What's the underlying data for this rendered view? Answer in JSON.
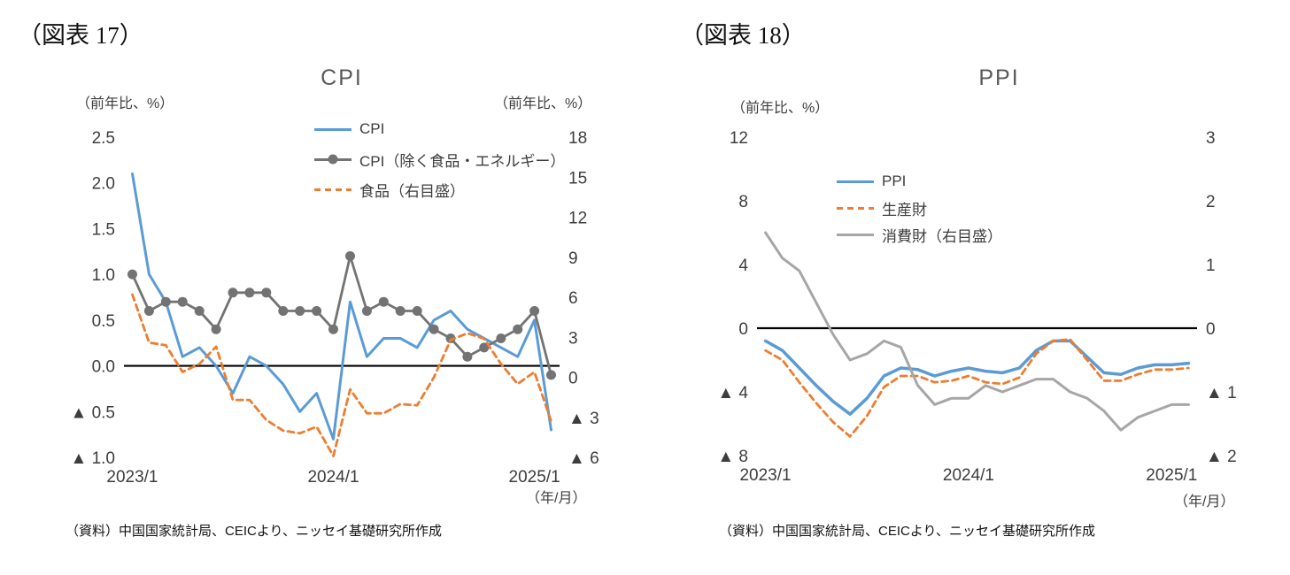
{
  "figures": [
    {
      "label": "（図表 17）",
      "source": "（資料）中国国家統計局、CEICより、ニッセイ基礎研究所作成"
    },
    {
      "label": "（図表 18）",
      "source": "（資料）中国国家統計局、CEICより、ニッセイ基礎研究所作成"
    }
  ],
  "chart_data": [
    {
      "type": "line",
      "title": "CPI",
      "x_unit": "（年/月）",
      "x": [
        "2023/1",
        "2023/2",
        "2023/3",
        "2023/4",
        "2023/5",
        "2023/6",
        "2023/7",
        "2023/8",
        "2023/9",
        "2023/10",
        "2023/11",
        "2023/12",
        "2024/1",
        "2024/2",
        "2024/3",
        "2024/4",
        "2024/5",
        "2024/6",
        "2024/7",
        "2024/8",
        "2024/9",
        "2024/10",
        "2024/11",
        "2024/12",
        "2025/1",
        "2025/2"
      ],
      "x_ticks": [
        {
          "index": 0,
          "label": "2023/1"
        },
        {
          "index": 12,
          "label": "2024/1"
        },
        {
          "index": 24,
          "label": "2025/1"
        }
      ],
      "left_axis": {
        "label": "（前年比、%）",
        "min": -1.0,
        "max": 2.5,
        "ticks": [
          "2.5",
          "2.0",
          "1.5",
          "1.0",
          "0.5",
          "0.0",
          "▲ 0.5",
          "▲ 1.0"
        ]
      },
      "right_axis": {
        "label": "（前年比、%）",
        "min": -6,
        "max": 18,
        "ticks": [
          "18",
          "15",
          "12",
          "9",
          "6",
          "3",
          "0",
          "▲ 3",
          "▲ 6"
        ]
      },
      "legend_position": "top-center-overlay",
      "grid": false,
      "series": [
        {
          "id": "cpi",
          "name": "CPI",
          "axis": "left",
          "color": "#5B9BD5",
          "style": "solid",
          "width": 3,
          "values": [
            2.1,
            1.0,
            0.7,
            0.1,
            0.2,
            0.0,
            -0.3,
            0.1,
            0.0,
            -0.2,
            -0.5,
            -0.3,
            -0.8,
            0.7,
            0.1,
            0.3,
            0.3,
            0.2,
            0.5,
            0.6,
            0.4,
            0.3,
            0.2,
            0.1,
            0.5,
            -0.7
          ]
        },
        {
          "id": "core-cpi",
          "name": "CPI（除く食品・エネルギー）",
          "axis": "left",
          "color": "#737373",
          "style": "solid",
          "width": 2.8,
          "marker": 5.5,
          "values": [
            1.0,
            0.6,
            0.7,
            0.7,
            0.6,
            0.4,
            0.8,
            0.8,
            0.8,
            0.6,
            0.6,
            0.6,
            0.4,
            1.2,
            0.6,
            0.7,
            0.6,
            0.6,
            0.4,
            0.3,
            0.1,
            0.2,
            0.3,
            0.4,
            0.6,
            -0.1
          ]
        },
        {
          "id": "food",
          "name": "食品（右目盛）",
          "axis": "right",
          "color": "#ED7D31",
          "style": "dashed",
          "width": 2.8,
          "values": [
            6.2,
            2.6,
            2.4,
            0.4,
            1.0,
            2.3,
            -1.7,
            -1.7,
            -3.2,
            -4.0,
            -4.2,
            -3.7,
            -5.9,
            -0.9,
            -2.7,
            -2.7,
            -2.0,
            -2.1,
            0.0,
            2.8,
            3.3,
            2.9,
            1.0,
            -0.5,
            0.4,
            -3.3
          ]
        }
      ]
    },
    {
      "type": "line",
      "title": "PPI",
      "x_unit": "（年/月）",
      "x": [
        "2023/1",
        "2023/2",
        "2023/3",
        "2023/4",
        "2023/5",
        "2023/6",
        "2023/7",
        "2023/8",
        "2023/9",
        "2023/10",
        "2023/11",
        "2023/12",
        "2024/1",
        "2024/2",
        "2024/3",
        "2024/4",
        "2024/5",
        "2024/6",
        "2024/7",
        "2024/8",
        "2024/9",
        "2024/10",
        "2024/11",
        "2024/12",
        "2025/1",
        "2025/2"
      ],
      "x_ticks": [
        {
          "index": 0,
          "label": "2023/1"
        },
        {
          "index": 12,
          "label": "2024/1"
        },
        {
          "index": 24,
          "label": "2025/1"
        }
      ],
      "left_axis": {
        "label": "（前年比、%）",
        "min": -8,
        "max": 12,
        "ticks": [
          "12",
          "8",
          "4",
          "0",
          "▲ 4",
          "▲ 8"
        ]
      },
      "right_axis": {
        "label": "",
        "min": -2,
        "max": 3,
        "ticks": [
          "3",
          "2",
          "1",
          "0",
          "▲ 1",
          "▲ 2"
        ]
      },
      "legend_position": "top-center-overlay",
      "grid": false,
      "series": [
        {
          "id": "ppi",
          "name": "PPI",
          "axis": "left",
          "color": "#5B9BD5",
          "style": "solid",
          "width": 3.5,
          "values": [
            -0.8,
            -1.4,
            -2.5,
            -3.6,
            -4.6,
            -5.4,
            -4.4,
            -3.0,
            -2.5,
            -2.6,
            -3.0,
            -2.7,
            -2.5,
            -2.7,
            -2.8,
            -2.5,
            -1.4,
            -0.8,
            -0.8,
            -1.8,
            -2.8,
            -2.9,
            -2.5,
            -2.3,
            -2.3,
            -2.2
          ]
        },
        {
          "id": "producer-goods",
          "name": "生産財",
          "axis": "left",
          "color": "#ED7D31",
          "style": "dashed",
          "width": 2.8,
          "values": [
            -1.4,
            -2.0,
            -3.4,
            -4.7,
            -5.9,
            -6.8,
            -5.5,
            -3.7,
            -3.0,
            -3.0,
            -3.4,
            -3.3,
            -3.0,
            -3.4,
            -3.5,
            -3.1,
            -1.6,
            -0.8,
            -0.7,
            -2.0,
            -3.3,
            -3.3,
            -2.9,
            -2.6,
            -2.6,
            -2.5
          ]
        },
        {
          "id": "consumer-goods",
          "name": "消費財（右目盛）",
          "axis": "right",
          "color": "#A6A6A6",
          "style": "solid",
          "width": 3,
          "values": [
            1.5,
            1.1,
            0.9,
            0.4,
            -0.1,
            -0.5,
            -0.4,
            -0.2,
            -0.3,
            -0.9,
            -1.2,
            -1.1,
            -1.1,
            -0.9,
            -1.0,
            -0.9,
            -0.8,
            -0.8,
            -1.0,
            -1.1,
            -1.3,
            -1.6,
            -1.4,
            -1.3,
            -1.2,
            -1.2
          ]
        }
      ]
    }
  ]
}
